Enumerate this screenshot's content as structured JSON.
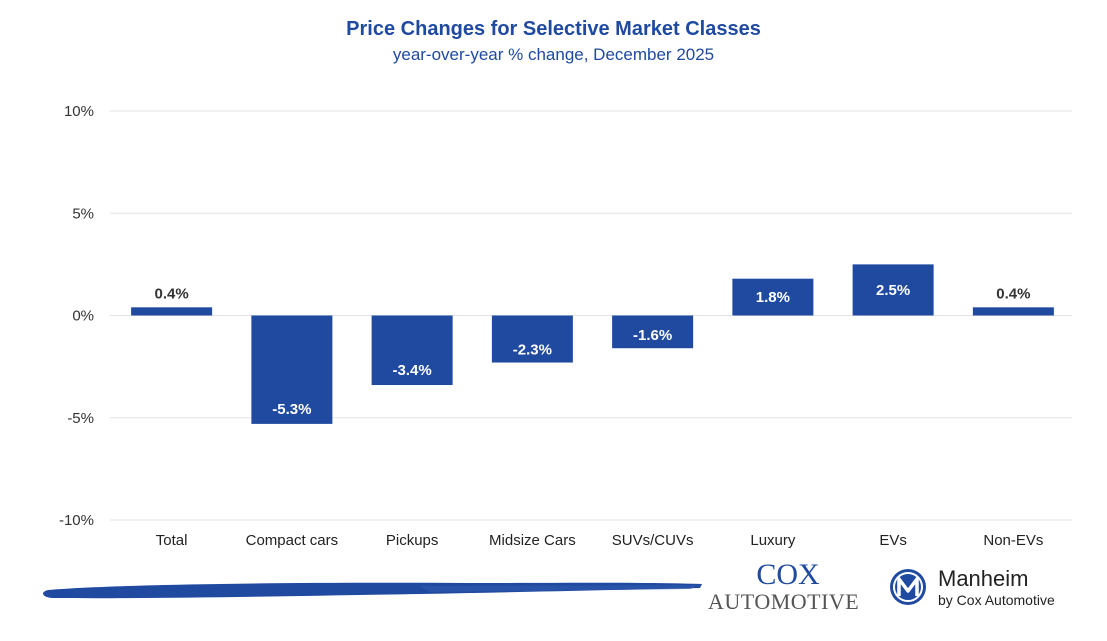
{
  "chart_data": {
    "type": "bar",
    "title": "Price Changes for Selective Market Classes",
    "subtitle": "year-over-year % change, December 2025",
    "categories": [
      "Total",
      "Compact cars",
      "Pickups",
      "Midsize Cars",
      "SUVs/CUVs",
      "Luxury",
      "EVs",
      "Non-EVs"
    ],
    "values": [
      0.4,
      -5.3,
      -3.4,
      -2.3,
      -1.6,
      1.8,
      2.5,
      0.4
    ],
    "data_labels": [
      "0.4%",
      "-5.3%",
      "-3.4%",
      "-2.3%",
      "-1.6%",
      "1.8%",
      "2.5%",
      "0.4%"
    ],
    "ylim": [
      -10,
      10
    ],
    "yticks": [
      10,
      5,
      0,
      -5,
      -10
    ],
    "ytick_labels": [
      "10%",
      "5%",
      "0%",
      "-5%",
      "-10%"
    ],
    "xlabel": "",
    "ylabel": "",
    "grid": true,
    "legend": "none",
    "bar_color": "#1f4aa0"
  },
  "branding": {
    "cox_line1": "COX",
    "cox_line2": "AUTOMOTIVE",
    "manheim_name": "Manheim",
    "manheim_tagline": "by Cox Automotive",
    "brand_color": "#1f4aa0"
  }
}
